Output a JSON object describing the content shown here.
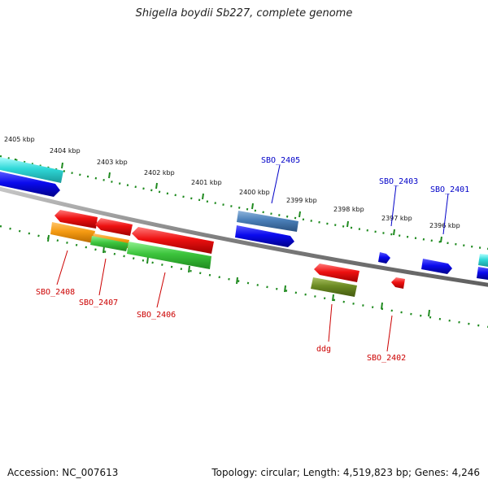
{
  "title": "Shigella boydii Sb227, complete genome",
  "footer": {
    "accession": "Accession: NC_007613",
    "summary": "Topology: circular; Length: 4,519,823 bp; Genes: 4,246"
  },
  "colors": {
    "backbone": "#8a8a8a",
    "tick": "#1e8a1e",
    "forward_label": "#0000c8",
    "reverse_label": "#cc0000"
  },
  "kbp_labels": [
    "2405 kbp",
    "2404 kbp",
    "2403 kbp",
    "2402 kbp",
    "2401 kbp",
    "2400 kbp",
    "2399 kbp",
    "2398 kbp",
    "2397 kbp",
    "2396 kbp"
  ],
  "gene_labels": {
    "forward": [
      "SBO_2405",
      "SBO_2403",
      "SBO_2401"
    ],
    "reverse": [
      "SBO_2408",
      "SBO_2407",
      "SBO_2406",
      "ddg",
      "SBO_2402"
    ]
  }
}
